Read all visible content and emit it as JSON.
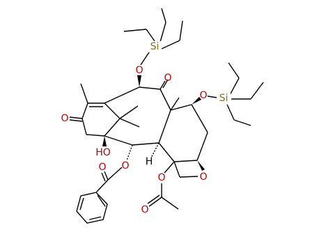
{
  "atoms": [
    {
      "label": "Si"
    },
    {
      "label": "O"
    },
    {
      "label": "O"
    },
    {
      "label": "O"
    },
    {
      "label": "O"
    },
    {
      "label": "Si"
    },
    {
      "label": "HO"
    },
    {
      "label": "O"
    },
    {
      "label": "O"
    },
    {
      "label": "H"
    },
    {
      "label": "O"
    },
    {
      "label": "O"
    },
    {
      "label": "O"
    }
  ]
}
